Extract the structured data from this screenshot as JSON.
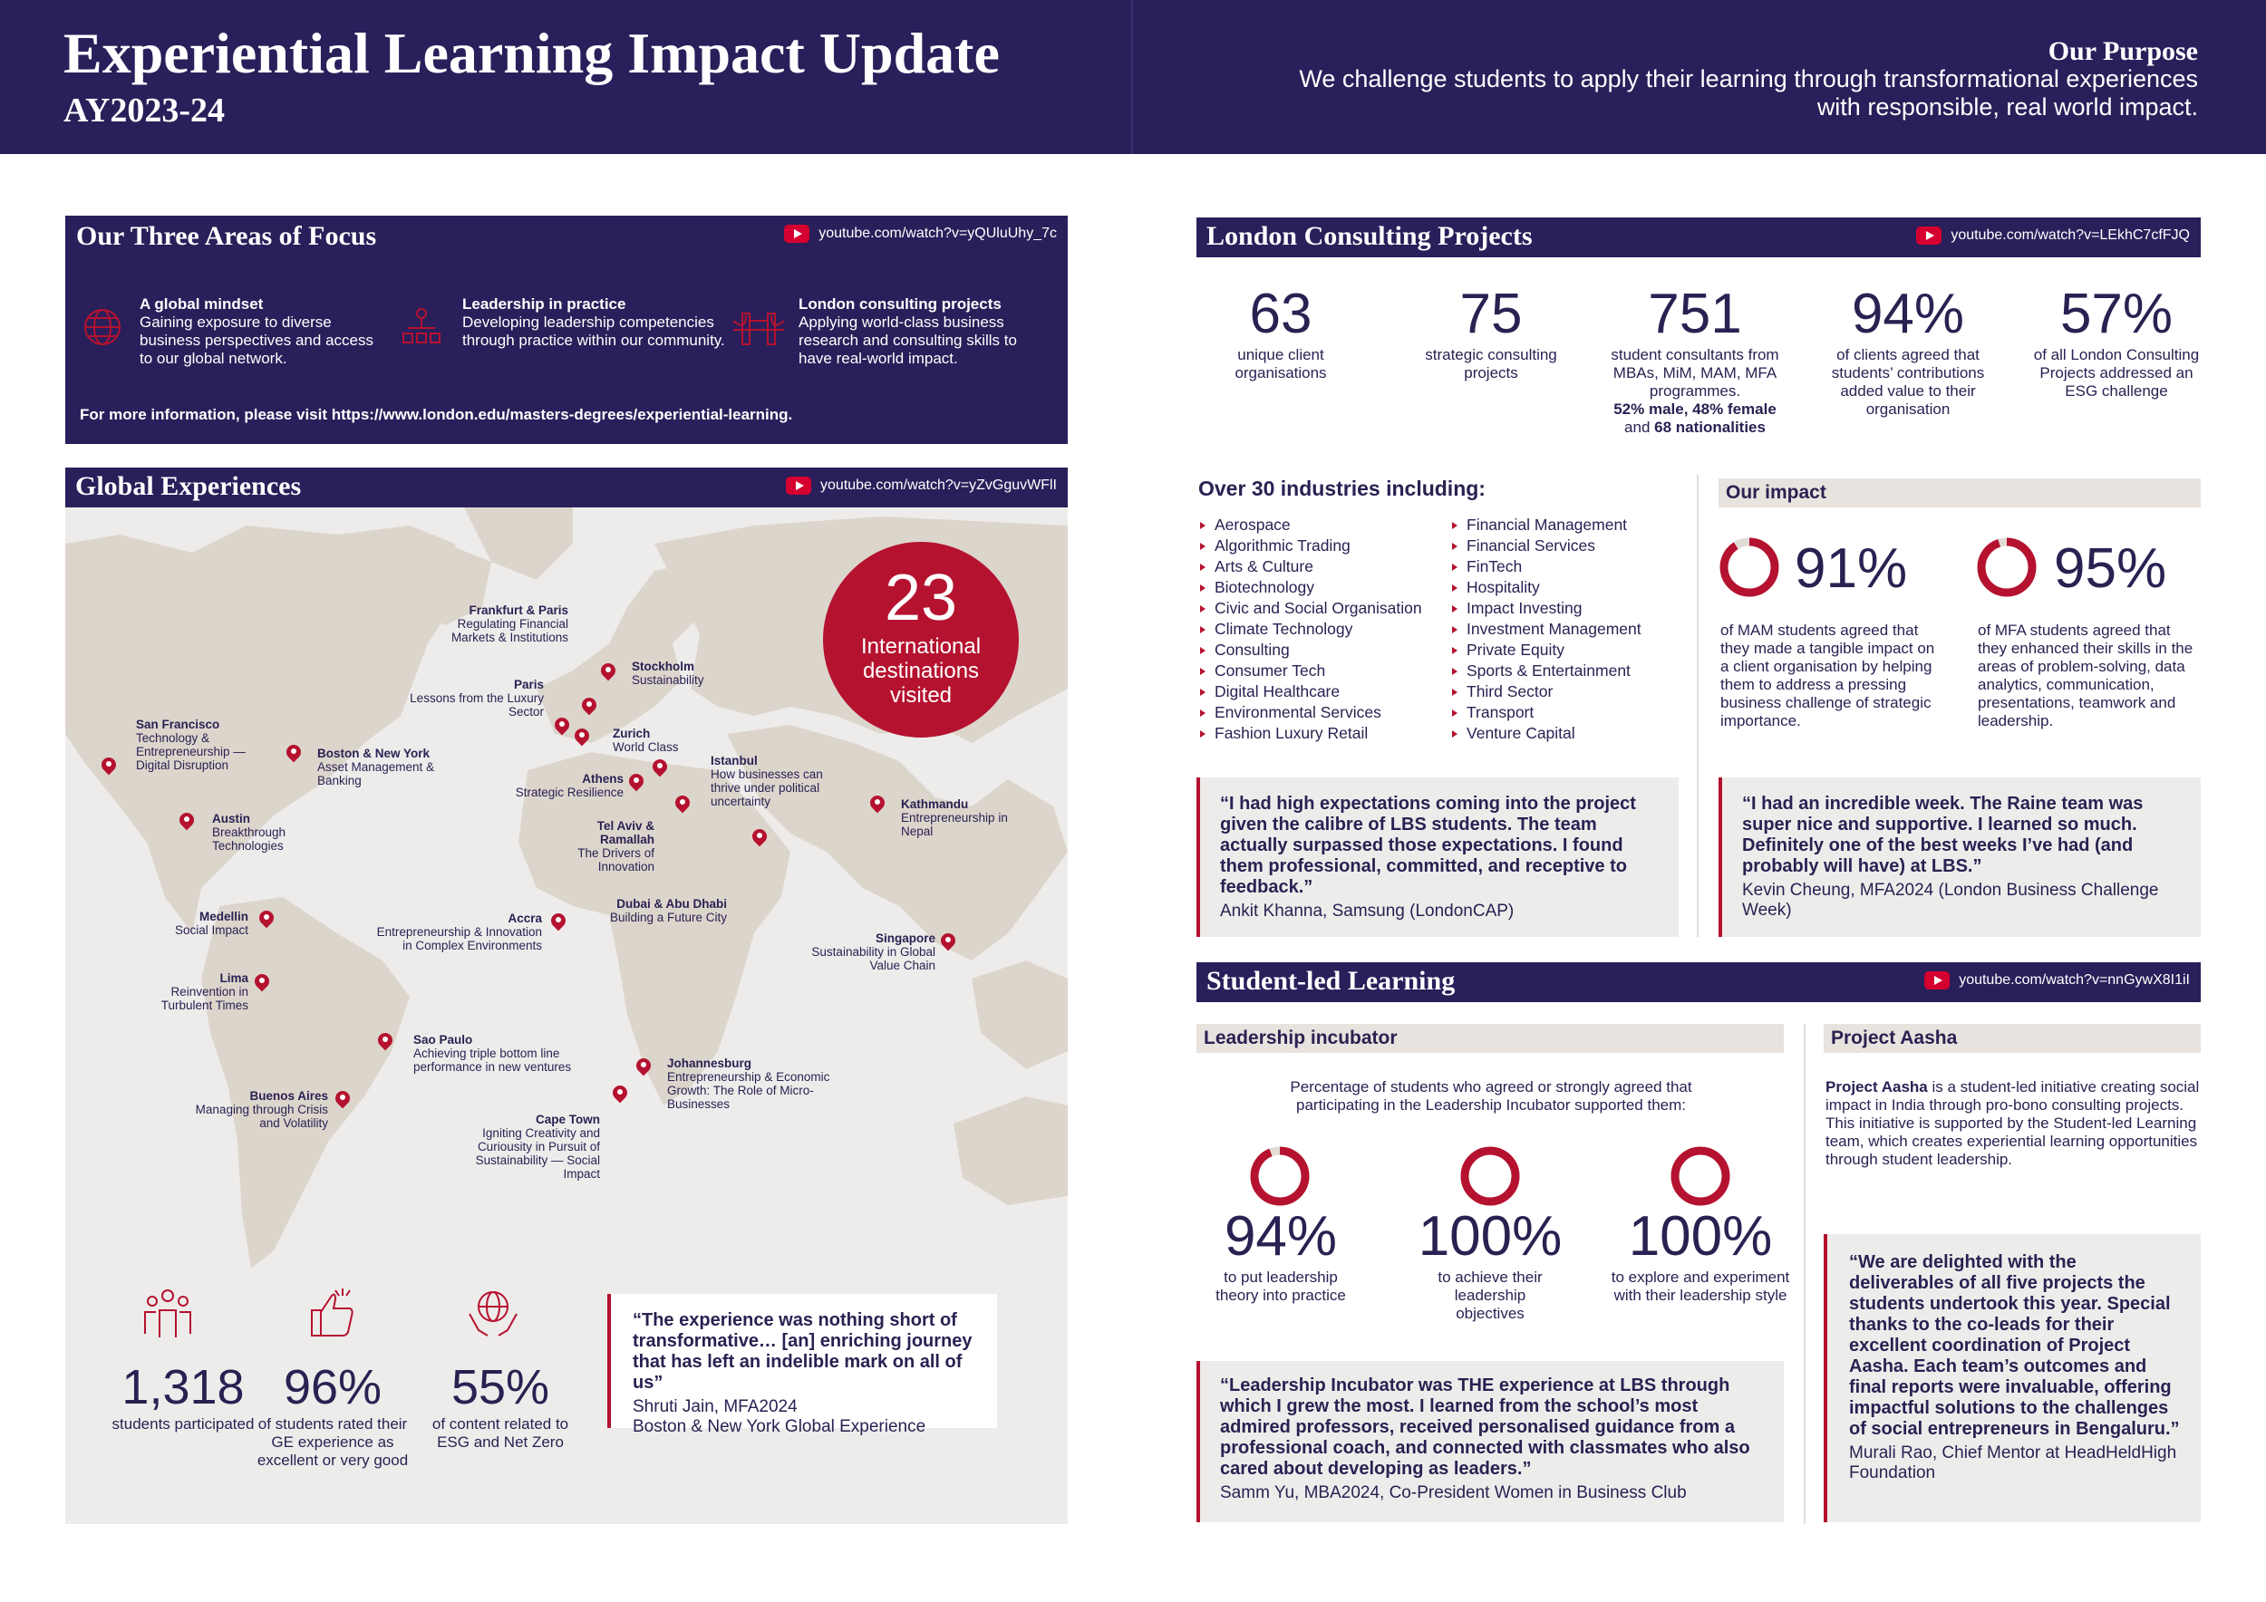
{
  "header": {
    "title": "Experiential Learning Impact Update",
    "subtitle": "AY2023-24",
    "purpose_heading": "Our Purpose",
    "purpose_text": "We challenge students to apply their learning through transformational experiences with responsible, real world impact."
  },
  "focus": {
    "title": "Our Three Areas of Focus",
    "link": "youtube.com/watch?v=yQUluUhy_7c",
    "items": [
      {
        "icon": "globe-icon",
        "title": "A global mindset",
        "text": "Gaining exposure to diverse business perspectives and access to our global network."
      },
      {
        "icon": "hierarchy-icon",
        "title": "Leadership in practice",
        "text": "Developing leadership competencies through practice within our community."
      },
      {
        "icon": "bridge-icon",
        "title": "London consulting projects",
        "text": "Applying world-class business research and consulting skills to have real-world impact."
      }
    ],
    "more": "For more information, please visit https://www.london.edu/masters-degrees/experiential-learning."
  },
  "global": {
    "title": "Global Experiences",
    "link": "youtube.com/watch?v=yZvGguvWFlI",
    "destinations_number": "23",
    "destinations_text": "International destinations visited",
    "cities": [
      {
        "name": "Frankfurt & Paris",
        "desc": "Regulating Financial Markets & Institutions"
      },
      {
        "name": "Stockholm",
        "desc": "Sustainability"
      },
      {
        "name": "Paris",
        "desc": "Lessons from the Luxury Sector"
      },
      {
        "name": "San Francisco",
        "desc": "Technology & Entrepreneurship — Digital Disruption"
      },
      {
        "name": "Boston & New York",
        "desc": "Asset Management & Banking"
      },
      {
        "name": "Zurich",
        "desc": "World Class"
      },
      {
        "name": "Istanbul",
        "desc": "How businesses can thrive under political uncertainty"
      },
      {
        "name": "Athens",
        "desc": "Strategic Resilience"
      },
      {
        "name": "Kathmandu",
        "desc": "Entrepreneurship in Nepal"
      },
      {
        "name": "Austin",
        "desc": "Breakthrough Technologies"
      },
      {
        "name": "Tel Aviv & Ramallah",
        "desc": "The Drivers of Innovation"
      },
      {
        "name": "Dubai & Abu Dhabi",
        "desc": "Building a Future City"
      },
      {
        "name": "Medellin",
        "desc": "Social Impact"
      },
      {
        "name": "Accra",
        "desc": "Entrepreneurship & Innovation in Complex Environments"
      },
      {
        "name": "Singapore",
        "desc": "Sustainability in Global Value Chain"
      },
      {
        "name": "Lima",
        "desc": "Reinvention in Turbulent Times"
      },
      {
        "name": "Sao Paulo",
        "desc": "Achieving triple bottom line performance in new ventures"
      },
      {
        "name": "Johannesburg",
        "desc": "Entrepreneurship & Economic Growth: The Role of Micro-Businesses"
      },
      {
        "name": "Buenos Aires",
        "desc": "Managing through Crisis and Volatility"
      },
      {
        "name": "Cape Town",
        "desc": "Igniting Creativity and Curiousity in Pursuit of Sustainability — Social Impact"
      }
    ],
    "stats": [
      {
        "icon": "people-icon",
        "value": "1,318",
        "label": "students participated"
      },
      {
        "icon": "thumbs-up-icon",
        "value": "96%",
        "label": "of students rated their GE experience as excellent or very good"
      },
      {
        "icon": "globe-hands-icon",
        "value": "55%",
        "label": "of content related to ESG and Net Zero"
      }
    ],
    "quote": {
      "text": "“The experience was nothing short of transformative… [an] enriching journey that has left an indelible mark on all of us”",
      "author": "Shruti Jain, MFA2024",
      "program": "Boston & New York Global Experience"
    }
  },
  "london": {
    "title": "London Consulting Projects",
    "link": "youtube.com/watch?v=LEkhC7cfFJQ",
    "stats": [
      {
        "value": "63",
        "label": "unique client organisations"
      },
      {
        "value": "75",
        "label": "strategic consulting projects"
      },
      {
        "value": "751",
        "label": "student consultants from MBAs, MiM, MAM, MFA programmes.",
        "extra1": "52% male, 48% female",
        "extra2": "and",
        "extra3": "68 nationalities"
      },
      {
        "value": "94%",
        "label": "of clients agreed that students’ contributions added value to their organisation"
      },
      {
        "value": "57%",
        "label": "of all London Consulting Projects addressed an ESG challenge"
      }
    ],
    "industries_title": "Over 30 industries including:",
    "industries_col1": [
      "Aerospace",
      "Algorithmic Trading",
      "Arts & Culture",
      "Biotechnology",
      "Civic and Social Organisation",
      "Climate Technology",
      "Consulting",
      "Consumer Tech",
      "Digital Healthcare",
      "Environmental Services",
      "Fashion Luxury Retail"
    ],
    "industries_col2": [
      "Financial Management",
      "Financial Services",
      "FinTech",
      "Hospitality",
      "Impact Investing",
      "Investment Management",
      "Private Equity",
      "Sports & Entertainment",
      "Third Sector",
      "Transport",
      "Venture Capital"
    ],
    "impact_title": "Our impact",
    "impact": [
      {
        "value": "91%",
        "fraction": 0.91,
        "label": "of MAM students agreed that they made a tangible impact on a client organisation by helping them to address a pressing business challenge of strategic importance."
      },
      {
        "value": "95%",
        "fraction": 0.95,
        "label": "of MFA students agreed that they enhanced their skills in the areas of problem-solving, data analytics, communication, presentations, teamwork and leadership."
      }
    ],
    "quote1": {
      "text": "“I had high expectations coming into the project given the calibre of LBS students. The team actually surpassed those expectations. I found them professional, committed, and receptive to feedback.”",
      "author": "Ankit Khanna, Samsung (LondonCAP)"
    },
    "quote2": {
      "text": "“I had an incredible week. The Raine team was super nice and supportive. I learned so much. Definitely one of the best weeks I’ve had (and probably will have) at LBS.”",
      "author": "Kevin Cheung, MFA2024 (London Business Challenge Week)"
    }
  },
  "student": {
    "title": "Student-led Learning",
    "link": "youtube.com/watch?v=nnGywX8I1iI",
    "incubator_title": "Leadership incubator",
    "incubator_intro": "Percentage of students who agreed or strongly agreed that participating in the Leadership Incubator supported them:",
    "incubator_stats": [
      {
        "value": "94%",
        "fraction": 0.94,
        "label": "to put leadership theory into practice"
      },
      {
        "value": "100%",
        "fraction": 1.0,
        "label": "to achieve their leadership objectives"
      },
      {
        "value": "100%",
        "fraction": 1.0,
        "label": "to explore and experiment with their leadership style"
      }
    ],
    "incubator_quote": {
      "text": "“Leadership Incubator was THE experience at LBS through which I grew the most. I learned from the school’s most admired professors, received personalised guidance from a professional coach, and connected with classmates who also cared about developing as leaders.”",
      "author": "Samm Yu, MBA2024, Co-President Women in Business Club"
    },
    "aasha_title": "Project Aasha",
    "aasha_bold": "Project Aasha",
    "aasha_text": " is a student-led initiative creating social impact in India through pro-bono consulting projects. This initiative is supported by the Student-led Learning team, which creates experiential learning opportunities through student leadership.",
    "aasha_quote": {
      "text": "“We are delighted with the deliverables of all five projects the students undertook this year. Special thanks to the co-leads for their excellent coordination of Project Aasha. Each team’s outcomes and final reports were invaluable, offering impactful solutions to the challenges of social entrepreneurs in Bengaluru.”",
      "author": "Murali Rao, Chief Mentor at HeadHeldHigh Foundation"
    }
  },
  "colors": {
    "navy": "#2a1f5a",
    "crimson": "#b5122f",
    "grey": "#eeeceb"
  }
}
